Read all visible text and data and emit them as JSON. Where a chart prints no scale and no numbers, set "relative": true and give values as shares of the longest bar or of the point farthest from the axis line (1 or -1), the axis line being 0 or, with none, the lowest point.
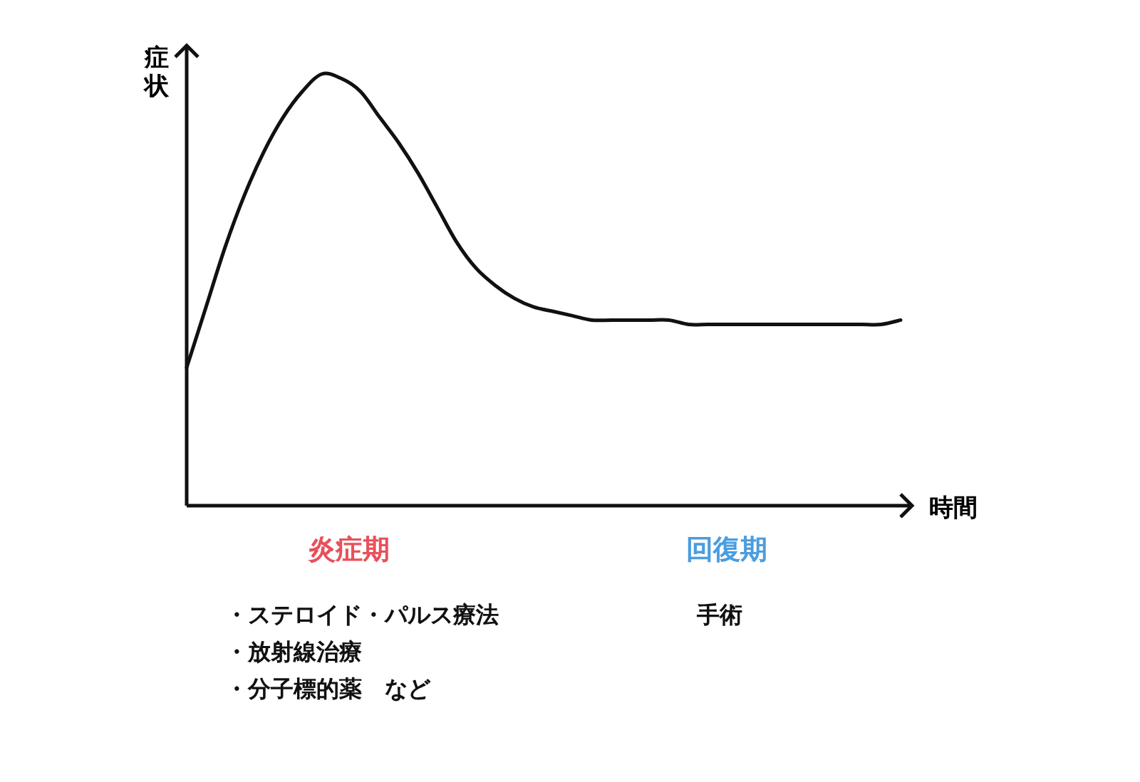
{
  "chart_data": {
    "type": "line",
    "relative": true,
    "ylabel": "症状",
    "xlabel": "時間",
    "categories": [
      null,
      null,
      null,
      null,
      null,
      null,
      null,
      null,
      null,
      null,
      null,
      null,
      null,
      null,
      null,
      null,
      null,
      null,
      null,
      null,
      null,
      null,
      null,
      null,
      null,
      null,
      null,
      null,
      null,
      null,
      null,
      null,
      null,
      null,
      null,
      null,
      null,
      null
    ],
    "series": [
      {
        "color": "#111111",
        "values": [
          0.32,
          0.46,
          0.6,
          0.72,
          0.82,
          0.9,
          0.96,
          1,
          0.99,
          0.96,
          0.9,
          0.84,
          0.77,
          0.69,
          0.61,
          0.55,
          0.51,
          0.48,
          0.46,
          0.45,
          0.44,
          0.43,
          0.43,
          0.43,
          0.43,
          0.43,
          0.42,
          0.42,
          0.42,
          0.42,
          0.42,
          0.42,
          0.42,
          0.42,
          0.42,
          0.42,
          0.42,
          0.43
        ]
      }
    ],
    "annotations": [
      "炎症期",
      "回復期",
      "・ステロイド・パルス療法",
      "・放射線治療",
      "・分子標的薬　など",
      "手術"
    ],
    "marker": "none",
    "line_style": "solid"
  }
}
